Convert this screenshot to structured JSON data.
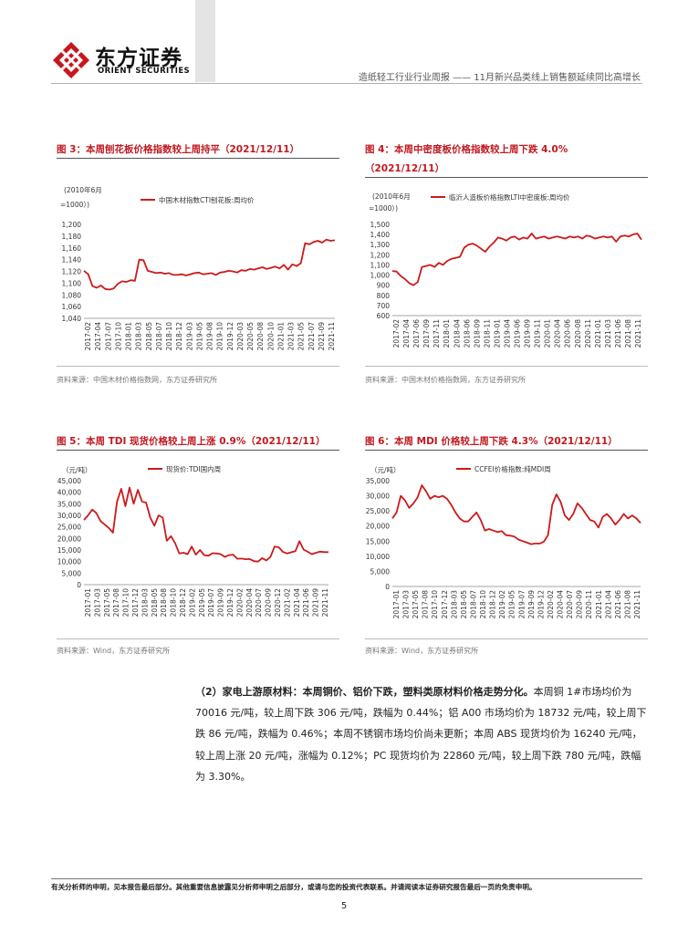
{
  "header": {
    "company_cn": "东方证券",
    "company_en": "ORIENT SECURITIES",
    "report_title": "造纸轻工行业行业周报 —— 11月新兴品类线上销售额延续同比高增长"
  },
  "figures": [
    {
      "title": "图 3：本周刨花板价格指数较上周持平（2021/12/11）",
      "source": "资料来源：中国木材价格指数网，东方证券研究所"
    },
    {
      "title": "图 4：本周中密度板价格指数较上周下跌 4.0%",
      "title_line2": "（2021/12/11）",
      "source": "资料来源：中国木材价格指数网，东方证券研究所"
    },
    {
      "title": "图 5：本周 TDI 现货价格较上周上涨 0.9%（2021/12/11）",
      "source": "资料来源：Wind，东方证券研究所"
    },
    {
      "title": "图 6：本周 MDI 价格较上周下跌 4.3%（2021/12/11）",
      "source": "资料来源：Wind，东方证券研究所"
    }
  ],
  "paragraph": {
    "label": "（2）家电上游原材料：本周铜价、铝价下跌，塑料类原材料价格走势分化。",
    "body": "本周铜 1#市场均价为 70016 元/吨，较上周下跌 306 元/吨，跌幅为 0.44%；铝 A00 市场均价为 18732 元/吨，较上周下跌 86 元/吨，跌幅为 0.46%；本周不锈钢市场均价尚未更新；本周 ABS 现货均价为 16240 元/吨，较上周上涨 20 元/吨，涨幅为 0.12%；PC 现货均价为 22860 元/吨，较上周下跌 780 元/吨，跌幅为 3.30%。"
  },
  "footer": {
    "disclaimer": "有关分析师的申明，见本报告最后部分。其他重要信息披露见分析师申明之后部分，或请与您的投资代表联系。并请阅读本证券研究报告最后一页的免责申明。",
    "page_number": "5"
  },
  "colors": {
    "accent": "#c01920",
    "line": "#cc1a1a",
    "text": "#222222"
  },
  "chart_data": [
    {
      "type": "line",
      "title": "图 3：本周刨花板价格指数较上周持平（2021/12/11）",
      "ylabel": "（2010年6月 =1000）",
      "ylim": [
        1040,
        1200
      ],
      "yticks": [
        "1,200",
        "1,180",
        "1,160",
        "1,140",
        "1,120",
        "1,100",
        "1,080",
        "1,060",
        "1,040"
      ],
      "x_ticks": [
        "2017-02",
        "2017-04",
        "2017-07",
        "2017-10",
        "2018-01",
        "2018-03",
        "2018-05",
        "2018-07",
        "2018-10",
        "2018-12",
        "2019-03",
        "2019-05",
        "2019-08",
        "2019-10",
        "2019-12",
        "2020-03",
        "2020-05",
        "2020-08",
        "2020-10",
        "2021-01",
        "2021-03",
        "2021-05",
        "2021-07",
        "2021-09",
        "2021-11"
      ],
      "series": [
        {
          "name": "中国木材指数CTI刨花板:周均价",
          "x": [
            0,
            1,
            2,
            3,
            4,
            5,
            6,
            7,
            8,
            9,
            10,
            11,
            12,
            13,
            14,
            15,
            16,
            17,
            18,
            19,
            20,
            21,
            22,
            23,
            24,
            25,
            26,
            27,
            28,
            29,
            30,
            31,
            32,
            33,
            34,
            35,
            36,
            37,
            38,
            39,
            40,
            41,
            42,
            43,
            44,
            45,
            46,
            47,
            48,
            49,
            50,
            51,
            52,
            53,
            54,
            55,
            56,
            57,
            58,
            59
          ],
          "values": [
            1121,
            1115,
            1095,
            1092,
            1096,
            1090,
            1089,
            1091,
            1099,
            1103,
            1102,
            1105,
            1104,
            1140,
            1139,
            1121,
            1119,
            1117,
            1118,
            1116,
            1117,
            1114,
            1114,
            1115,
            1113,
            1115,
            1117,
            1118,
            1115,
            1116,
            1117,
            1114,
            1118,
            1119,
            1121,
            1120,
            1118,
            1122,
            1121,
            1124,
            1123,
            1125,
            1127,
            1124,
            1126,
            1128,
            1125,
            1131,
            1123,
            1132,
            1129,
            1134,
            1168,
            1166,
            1170,
            1172,
            1169,
            1174,
            1172,
            1173
          ]
        }
      ]
    },
    {
      "type": "line",
      "title": "图 4：本周中密度板价格指数较上周下跌 4.0%（2021/12/11）",
      "ylabel": "（2010年6月 =1000）",
      "ylim": [
        600,
        1500
      ],
      "yticks": [
        "1,500",
        "1,400",
        "1,300",
        "1,200",
        "1,100",
        "1,000",
        "900",
        "800",
        "700",
        "600"
      ],
      "x_ticks": [
        "2017-02",
        "2017-04",
        "2017-06",
        "2017-09",
        "2017-11",
        "2018-01",
        "2018-04",
        "2018-06",
        "2018-09",
        "2018-11",
        "2019-01",
        "2019-04",
        "2019-06",
        "2019-09",
        "2019-11",
        "2020-01",
        "2020-04",
        "2020-06",
        "2020-08",
        "2020-11",
        "2021-01",
        "2021-03",
        "2021-06",
        "2021-08",
        "2021-11"
      ],
      "series": [
        {
          "name": "临沂人造板价格指数LTI中密度板:周均价",
          "x": [
            0,
            1,
            2,
            3,
            4,
            5,
            6,
            7,
            8,
            9,
            10,
            11,
            12,
            13,
            14,
            15,
            16,
            17,
            18,
            19,
            20,
            21,
            22,
            23,
            24,
            25,
            26,
            27,
            28,
            29,
            30,
            31,
            32,
            33,
            34,
            35,
            36,
            37,
            38,
            39,
            40,
            41,
            42,
            43,
            44,
            45,
            46,
            47,
            48,
            49,
            50,
            51,
            52,
            53,
            54,
            55,
            56,
            57,
            58,
            59
          ],
          "values": [
            1040,
            1035,
            990,
            960,
            920,
            900,
            930,
            1080,
            1090,
            1100,
            1080,
            1120,
            1100,
            1140,
            1160,
            1170,
            1180,
            1270,
            1300,
            1310,
            1290,
            1260,
            1230,
            1280,
            1320,
            1370,
            1360,
            1340,
            1370,
            1380,
            1350,
            1370,
            1360,
            1410,
            1360,
            1370,
            1380,
            1360,
            1370,
            1380,
            1370,
            1360,
            1380,
            1370,
            1380,
            1360,
            1390,
            1380,
            1360,
            1370,
            1380,
            1370,
            1380,
            1330,
            1380,
            1390,
            1380,
            1400,
            1410,
            1350
          ]
        }
      ]
    },
    {
      "type": "line",
      "title": "图 5：本周 TDI 现货价格较上周上涨 0.9%（2021/12/11）",
      "ylabel": "（元/吨）",
      "ylim": [
        0,
        45000
      ],
      "yticks": [
        "45,000",
        "40,000",
        "35,000",
        "30,000",
        "25,000",
        "20,000",
        "15,000",
        "10,000",
        "5,000",
        "0"
      ],
      "x_ticks": [
        "2017-01",
        "2017-03",
        "2017-05",
        "2017-08",
        "2017-10",
        "2017-12",
        "2018-03",
        "2018-05",
        "2018-08",
        "2018-10",
        "2018-12",
        "2019-02",
        "2019-05",
        "2019-07",
        "2019-09",
        "2019-12",
        "2020-02",
        "2020-04",
        "2020-07",
        "2020-09",
        "2020-12",
        "2021-02",
        "2021-04",
        "2021-06",
        "2021-09",
        "2021-11"
      ],
      "series": [
        {
          "name": "现货价:TDI国内周",
          "x": [
            0,
            1,
            2,
            3,
            4,
            5,
            6,
            7,
            8,
            9,
            10,
            11,
            12,
            13,
            14,
            15,
            16,
            17,
            18,
            19,
            20,
            21,
            22,
            23,
            24,
            25,
            26,
            27,
            28,
            29,
            30,
            31,
            32,
            33,
            34,
            35,
            36,
            37,
            38,
            39,
            40,
            41,
            42,
            43,
            44,
            45,
            46,
            47,
            48,
            49,
            50,
            51,
            52,
            53,
            54,
            55,
            56,
            57,
            58,
            59
          ],
          "values": [
            28000,
            30000,
            32500,
            31000,
            27500,
            26000,
            24500,
            22500,
            36000,
            41500,
            34000,
            42000,
            35000,
            41000,
            36000,
            35500,
            29000,
            25500,
            30000,
            29000,
            19000,
            21000,
            18000,
            13500,
            13800,
            13200,
            16500,
            13000,
            15000,
            12800,
            12500,
            13600,
            13500,
            13200,
            12000,
            12800,
            13000,
            11200,
            11300,
            11000,
            11100,
            10200,
            10000,
            11500,
            10500,
            12000,
            16500,
            16200,
            14200,
            13500,
            14000,
            14500,
            18800,
            15200,
            14200,
            13200,
            13800,
            14300,
            14100,
            14100
          ]
        }
      ]
    },
    {
      "type": "line",
      "title": "图 6：本周 MDI 价格较上周下跌 4.3%（2021/12/11）",
      "ylabel": "（元/吨）",
      "ylim": [
        0,
        35000
      ],
      "yticks": [
        "35,000",
        "30,000",
        "25,000",
        "20,000",
        "15,000",
        "10,000",
        "5,000",
        "0"
      ],
      "x_ticks": [
        "2017-01",
        "2017-03",
        "2017-05",
        "2017-08",
        "2017-10",
        "2017-12",
        "2018-03",
        "2018-05",
        "2018-07",
        "2018-10",
        "2018-12",
        "2019-02",
        "2019-05",
        "2019-07",
        "2019-09",
        "2019-12",
        "2020-02",
        "2020-04",
        "2020-07",
        "2020-09",
        "2020-11",
        "2021-01",
        "2021-04",
        "2021-06",
        "2021-08",
        "2021-11"
      ],
      "series": [
        {
          "name": "CCFEI价格指数:纯MDI周",
          "x": [
            0,
            1,
            2,
            3,
            4,
            5,
            6,
            7,
            8,
            9,
            10,
            11,
            12,
            13,
            14,
            15,
            16,
            17,
            18,
            19,
            20,
            21,
            22,
            23,
            24,
            25,
            26,
            27,
            28,
            29,
            30,
            31,
            32,
            33,
            34,
            35,
            36,
            37,
            38,
            39,
            40,
            41,
            42,
            43,
            44,
            45,
            46,
            47,
            48,
            49,
            50,
            51,
            52,
            53,
            54,
            55,
            56,
            57,
            58,
            59
          ],
          "values": [
            22500,
            24500,
            30000,
            28500,
            26000,
            27500,
            29500,
            33500,
            31500,
            29000,
            30000,
            29500,
            30000,
            29000,
            27000,
            24500,
            22500,
            21500,
            21500,
            23000,
            24500,
            22000,
            18500,
            19000,
            18500,
            18000,
            18300,
            17000,
            16800,
            16500,
            15500,
            15000,
            14500,
            14000,
            14200,
            14200,
            14800,
            17000,
            27000,
            30500,
            28000,
            23500,
            22000,
            24000,
            27500,
            26000,
            24000,
            22000,
            21500,
            19500,
            23000,
            24000,
            22500,
            20500,
            22000,
            24000,
            22500,
            23500,
            22500,
            21000
          ]
        }
      ]
    }
  ]
}
